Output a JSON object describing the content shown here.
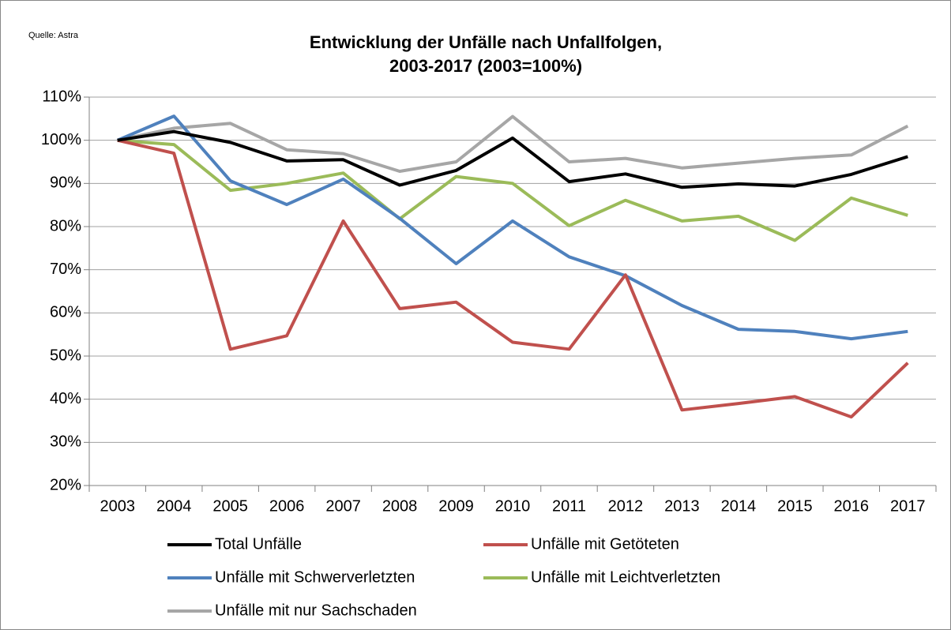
{
  "chart_data": {
    "type": "line",
    "source": "Quelle: Astra",
    "title": [
      "Entwicklung der Unfälle nach Unfallfolgen,",
      "2003-2017 (2003=100%)"
    ],
    "categories": [
      "2003",
      "2004",
      "2005",
      "2006",
      "2007",
      "2008",
      "2009",
      "2010",
      "2011",
      "2012",
      "2013",
      "2014",
      "2015",
      "2016",
      "2017"
    ],
    "series": [
      {
        "name": "Total Unfälle",
        "color": "#000000",
        "values": [
          100,
          102,
          99.5,
          95.2,
          95.5,
          89.6,
          93,
          100.5,
          90.4,
          92.2,
          89.1,
          89.9,
          89.4,
          92.1,
          96.2
        ]
      },
      {
        "name": "Unfälle mit Getöteten",
        "color": "#c0504d",
        "values": [
          100,
          97,
          51.6,
          54.7,
          81.3,
          61,
          62.5,
          53.2,
          51.6,
          68.8,
          37.5,
          39,
          40.6,
          35.9,
          48.4
        ]
      },
      {
        "name": "Unfälle mit Schwerverletzten",
        "color": "#4f81bd",
        "values": [
          100,
          105.6,
          90.6,
          85.1,
          91,
          81.9,
          71.4,
          81.3,
          73,
          68.6,
          61.7,
          56.2,
          55.7,
          54,
          55.7
        ]
      },
      {
        "name": "Unfälle mit Leichtverletzten",
        "color": "#9bbb59",
        "values": [
          100,
          99,
          88.4,
          90,
          92.4,
          81.8,
          91.6,
          90,
          80.2,
          86.1,
          81.3,
          82.4,
          76.8,
          86.6,
          82.6
        ]
      },
      {
        "name": "Unfälle mit nur Sachschaden",
        "color": "#a6a6a6",
        "values": [
          100,
          102.8,
          103.9,
          97.8,
          96.9,
          92.8,
          95,
          105.5,
          95,
          95.8,
          93.6,
          94.7,
          95.8,
          96.6,
          103.3
        ]
      }
    ],
    "ylim": [
      20,
      110
    ],
    "yticks": [
      {
        "value": 20,
        "label": "20%"
      },
      {
        "value": 30,
        "label": "30%"
      },
      {
        "value": 40,
        "label": "40%"
      },
      {
        "value": 50,
        "label": "50%"
      },
      {
        "value": 60,
        "label": "60%"
      },
      {
        "value": 70,
        "label": "70%"
      },
      {
        "value": 80,
        "label": "80%"
      },
      {
        "value": 90,
        "label": "90%"
      },
      {
        "value": 100,
        "label": "100%"
      },
      {
        "value": 110,
        "label": "110%"
      }
    ],
    "grid": true
  }
}
